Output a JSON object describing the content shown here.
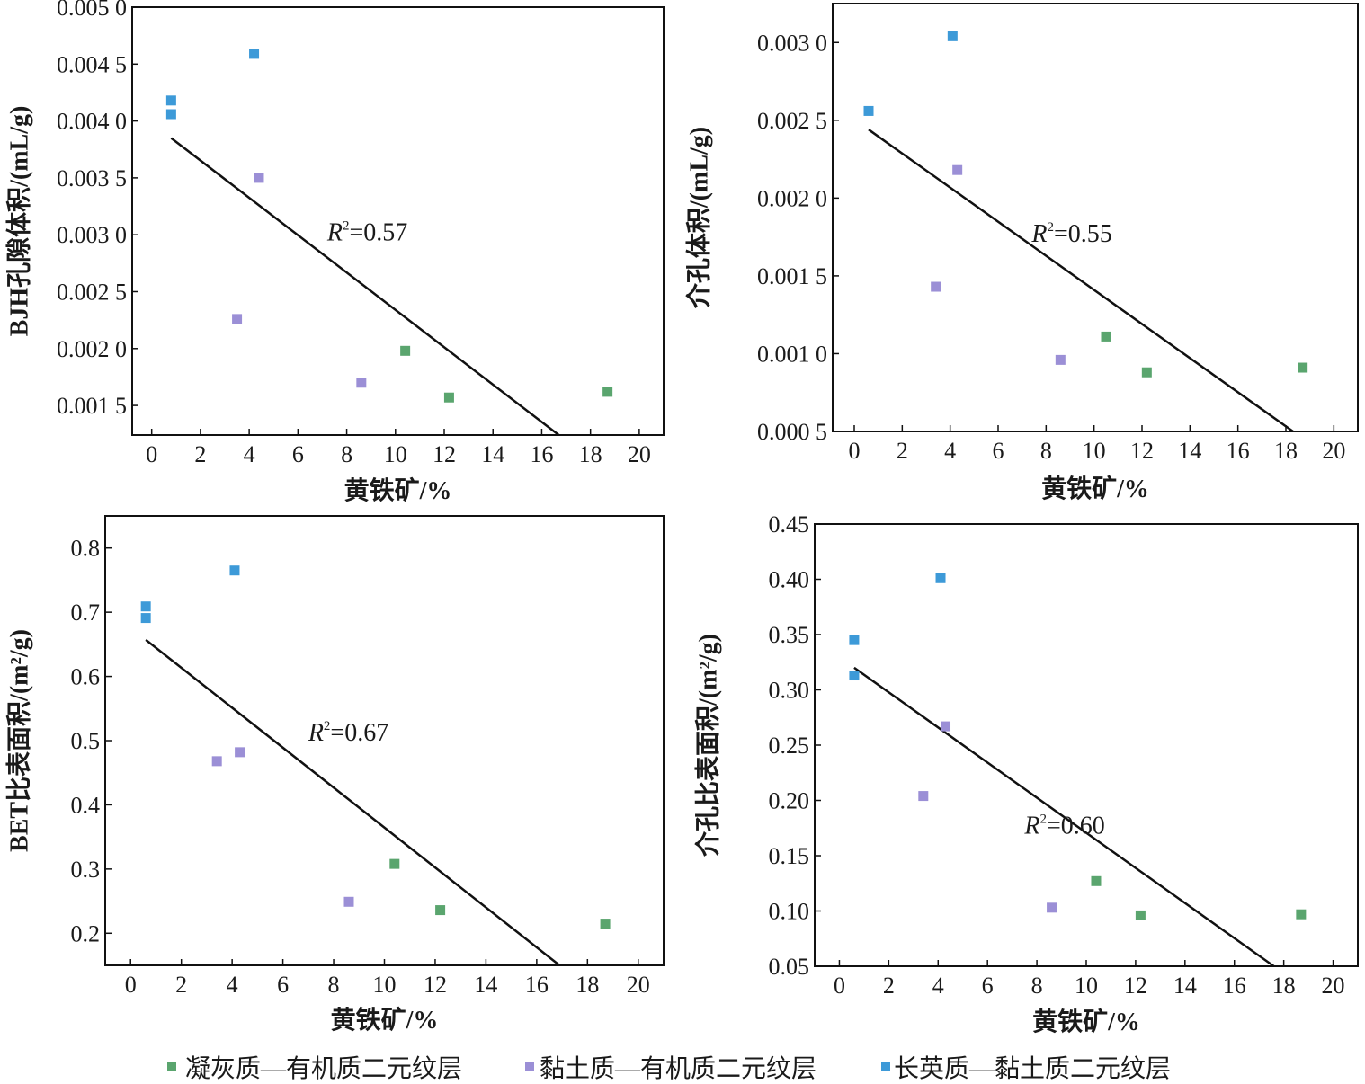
{
  "colors": {
    "tuff": "#5aa56e",
    "clay": "#9b8fd6",
    "felsic": "#3d9ad8",
    "line": "#111111",
    "axis": "#111111"
  },
  "legend": [
    {
      "key": "tuff",
      "label": "凝灰质—有机质二元纹层"
    },
    {
      "key": "clay",
      "label": "黏土质—有机质二元纹层"
    },
    {
      "key": "felsic",
      "label": "长英质—黏土质二元纹层"
    }
  ],
  "chart_data": [
    {
      "type": "scatter",
      "id": "bjh",
      "xlabel": "黄铁矿/%",
      "ylabel": "BJH孔隙体积/(mL/g)",
      "xlim": [
        -0.8,
        21
      ],
      "ylim": [
        0.00124,
        0.005
      ],
      "xticks": [
        "0",
        "2",
        "4",
        "6",
        "8",
        "10",
        "12",
        "14",
        "16",
        "18",
        "20"
      ],
      "xtick_values": [
        0,
        2,
        4,
        6,
        8,
        10,
        12,
        14,
        16,
        18,
        20
      ],
      "yticks": [
        "0.001 5",
        "0.002 0",
        "0.002 5",
        "0.003 0",
        "0.003 5",
        "0.004 0",
        "0.004 5",
        "0.005 0"
      ],
      "ytick_values": [
        0.0015,
        0.002,
        0.0025,
        0.003,
        0.0035,
        0.004,
        0.0045,
        0.005
      ],
      "annotation": {
        "italic": "R",
        "sup": "2",
        "rest": "=0.57",
        "x": 7.2,
        "y": 0.00295
      },
      "trend": {
        "x": [
          0.8,
          16.7
        ],
        "y": [
          0.00385,
          0.00124
        ]
      },
      "series": [
        {
          "key": "tuff",
          "x": [
            10.4,
            12.2,
            18.7
          ],
          "y": [
            0.00198,
            0.00157,
            0.00162
          ]
        },
        {
          "key": "clay",
          "x": [
            3.5,
            4.4,
            8.6
          ],
          "y": [
            0.00226,
            0.0035,
            0.0017
          ]
        },
        {
          "key": "felsic",
          "x": [
            0.8,
            0.8,
            4.2
          ],
          "y": [
            0.00418,
            0.00406,
            0.00459
          ]
        }
      ]
    },
    {
      "type": "scatter",
      "id": "meso-volume",
      "xlabel": "黄铁矿/%",
      "ylabel": "介孔体积/(mL/g)",
      "xlim": [
        -0.9,
        21
      ],
      "ylim": [
        0.0005,
        0.00325
      ],
      "xticks": [
        "0",
        "2",
        "4",
        "6",
        "8",
        "10",
        "12",
        "14",
        "16",
        "18",
        "20"
      ],
      "xtick_values": [
        0,
        2,
        4,
        6,
        8,
        10,
        12,
        14,
        16,
        18,
        20
      ],
      "yticks": [
        "0.000 5",
        "0.001 0",
        "0.001 5",
        "0.002 0",
        "0.002 5",
        "0.003 0"
      ],
      "ytick_values": [
        0.0005,
        0.001,
        0.0015,
        0.002,
        0.0025,
        0.003
      ],
      "annotation": {
        "italic": "R",
        "sup": "2",
        "rest": "=0.55",
        "x": 7.4,
        "y": 0.00172
      },
      "trend": {
        "x": [
          0.6,
          18.3
        ],
        "y": [
          0.00244,
          0.0005
        ]
      },
      "series": [
        {
          "key": "tuff",
          "x": [
            10.5,
            12.2,
            18.7
          ],
          "y": [
            0.00111,
            0.00088,
            0.00091
          ]
        },
        {
          "key": "clay",
          "x": [
            3.4,
            4.3,
            8.6
          ],
          "y": [
            0.00143,
            0.00218,
            0.00096
          ]
        },
        {
          "key": "felsic",
          "x": [
            0.6,
            4.1
          ],
          "y": [
            0.00256,
            0.00304
          ]
        }
      ]
    },
    {
      "type": "scatter",
      "id": "bet",
      "xlabel": "黄铁矿/%",
      "ylabel": "BET比表面积/(m²/g)",
      "xlim": [
        -1,
        21
      ],
      "ylim": [
        0.15,
        0.85
      ],
      "xticks": [
        "0",
        "2",
        "4",
        "6",
        "8",
        "10",
        "12",
        "14",
        "16",
        "18",
        "20"
      ],
      "xtick_values": [
        0,
        2,
        4,
        6,
        8,
        10,
        12,
        14,
        16,
        18,
        20
      ],
      "yticks": [
        "0.2",
        "0.3",
        "0.4",
        "0.5",
        "0.6",
        "0.7",
        "0.8"
      ],
      "ytick_values": [
        0.2,
        0.3,
        0.4,
        0.5,
        0.6,
        0.7,
        0.8
      ],
      "annotation": {
        "italic": "R",
        "sup": "2",
        "rest": "=0.67",
        "x": 7.0,
        "y": 0.5
      },
      "trend": {
        "x": [
          0.6,
          16.9
        ],
        "y": [
          0.657,
          0.15
        ]
      },
      "series": [
        {
          "key": "tuff",
          "x": [
            10.4,
            12.2,
            18.7
          ],
          "y": [
            0.308,
            0.236,
            0.215
          ]
        },
        {
          "key": "clay",
          "x": [
            3.4,
            4.3,
            8.6
          ],
          "y": [
            0.468,
            0.482,
            0.249
          ]
        },
        {
          "key": "felsic",
          "x": [
            0.6,
            0.6,
            4.1
          ],
          "y": [
            0.709,
            0.691,
            0.765
          ]
        }
      ]
    },
    {
      "type": "scatter",
      "id": "meso-area",
      "xlabel": "黄铁矿/%",
      "ylabel": "介孔比表面积/(m²/g)",
      "xlim": [
        -1,
        21
      ],
      "ylim": [
        0.05,
        0.45
      ],
      "xticks": [
        "0",
        "2",
        "4",
        "6",
        "8",
        "10",
        "12",
        "14",
        "16",
        "18",
        "20"
      ],
      "xtick_values": [
        0,
        2,
        4,
        6,
        8,
        10,
        12,
        14,
        16,
        18,
        20
      ],
      "yticks": [
        "0.05",
        "0.10",
        "0.15",
        "0.20",
        "0.25",
        "0.30",
        "0.35",
        "0.40",
        "0.45"
      ],
      "ytick_values": [
        0.05,
        0.1,
        0.15,
        0.2,
        0.25,
        0.3,
        0.35,
        0.4,
        0.45
      ],
      "annotation": {
        "italic": "R",
        "sup": "2",
        "rest": "=0.60",
        "x": 7.5,
        "y": 0.17
      },
      "trend": {
        "x": [
          0.6,
          17.6
        ],
        "y": [
          0.32,
          0.05
        ]
      },
      "series": [
        {
          "key": "tuff",
          "x": [
            10.4,
            12.2,
            18.7
          ],
          "y": [
            0.127,
            0.096,
            0.097
          ]
        },
        {
          "key": "clay",
          "x": [
            3.4,
            4.3,
            8.6
          ],
          "y": [
            0.204,
            0.267,
            0.103
          ]
        },
        {
          "key": "felsic",
          "x": [
            0.6,
            0.6,
            4.1
          ],
          "y": [
            0.345,
            0.313,
            0.401
          ]
        }
      ]
    }
  ]
}
